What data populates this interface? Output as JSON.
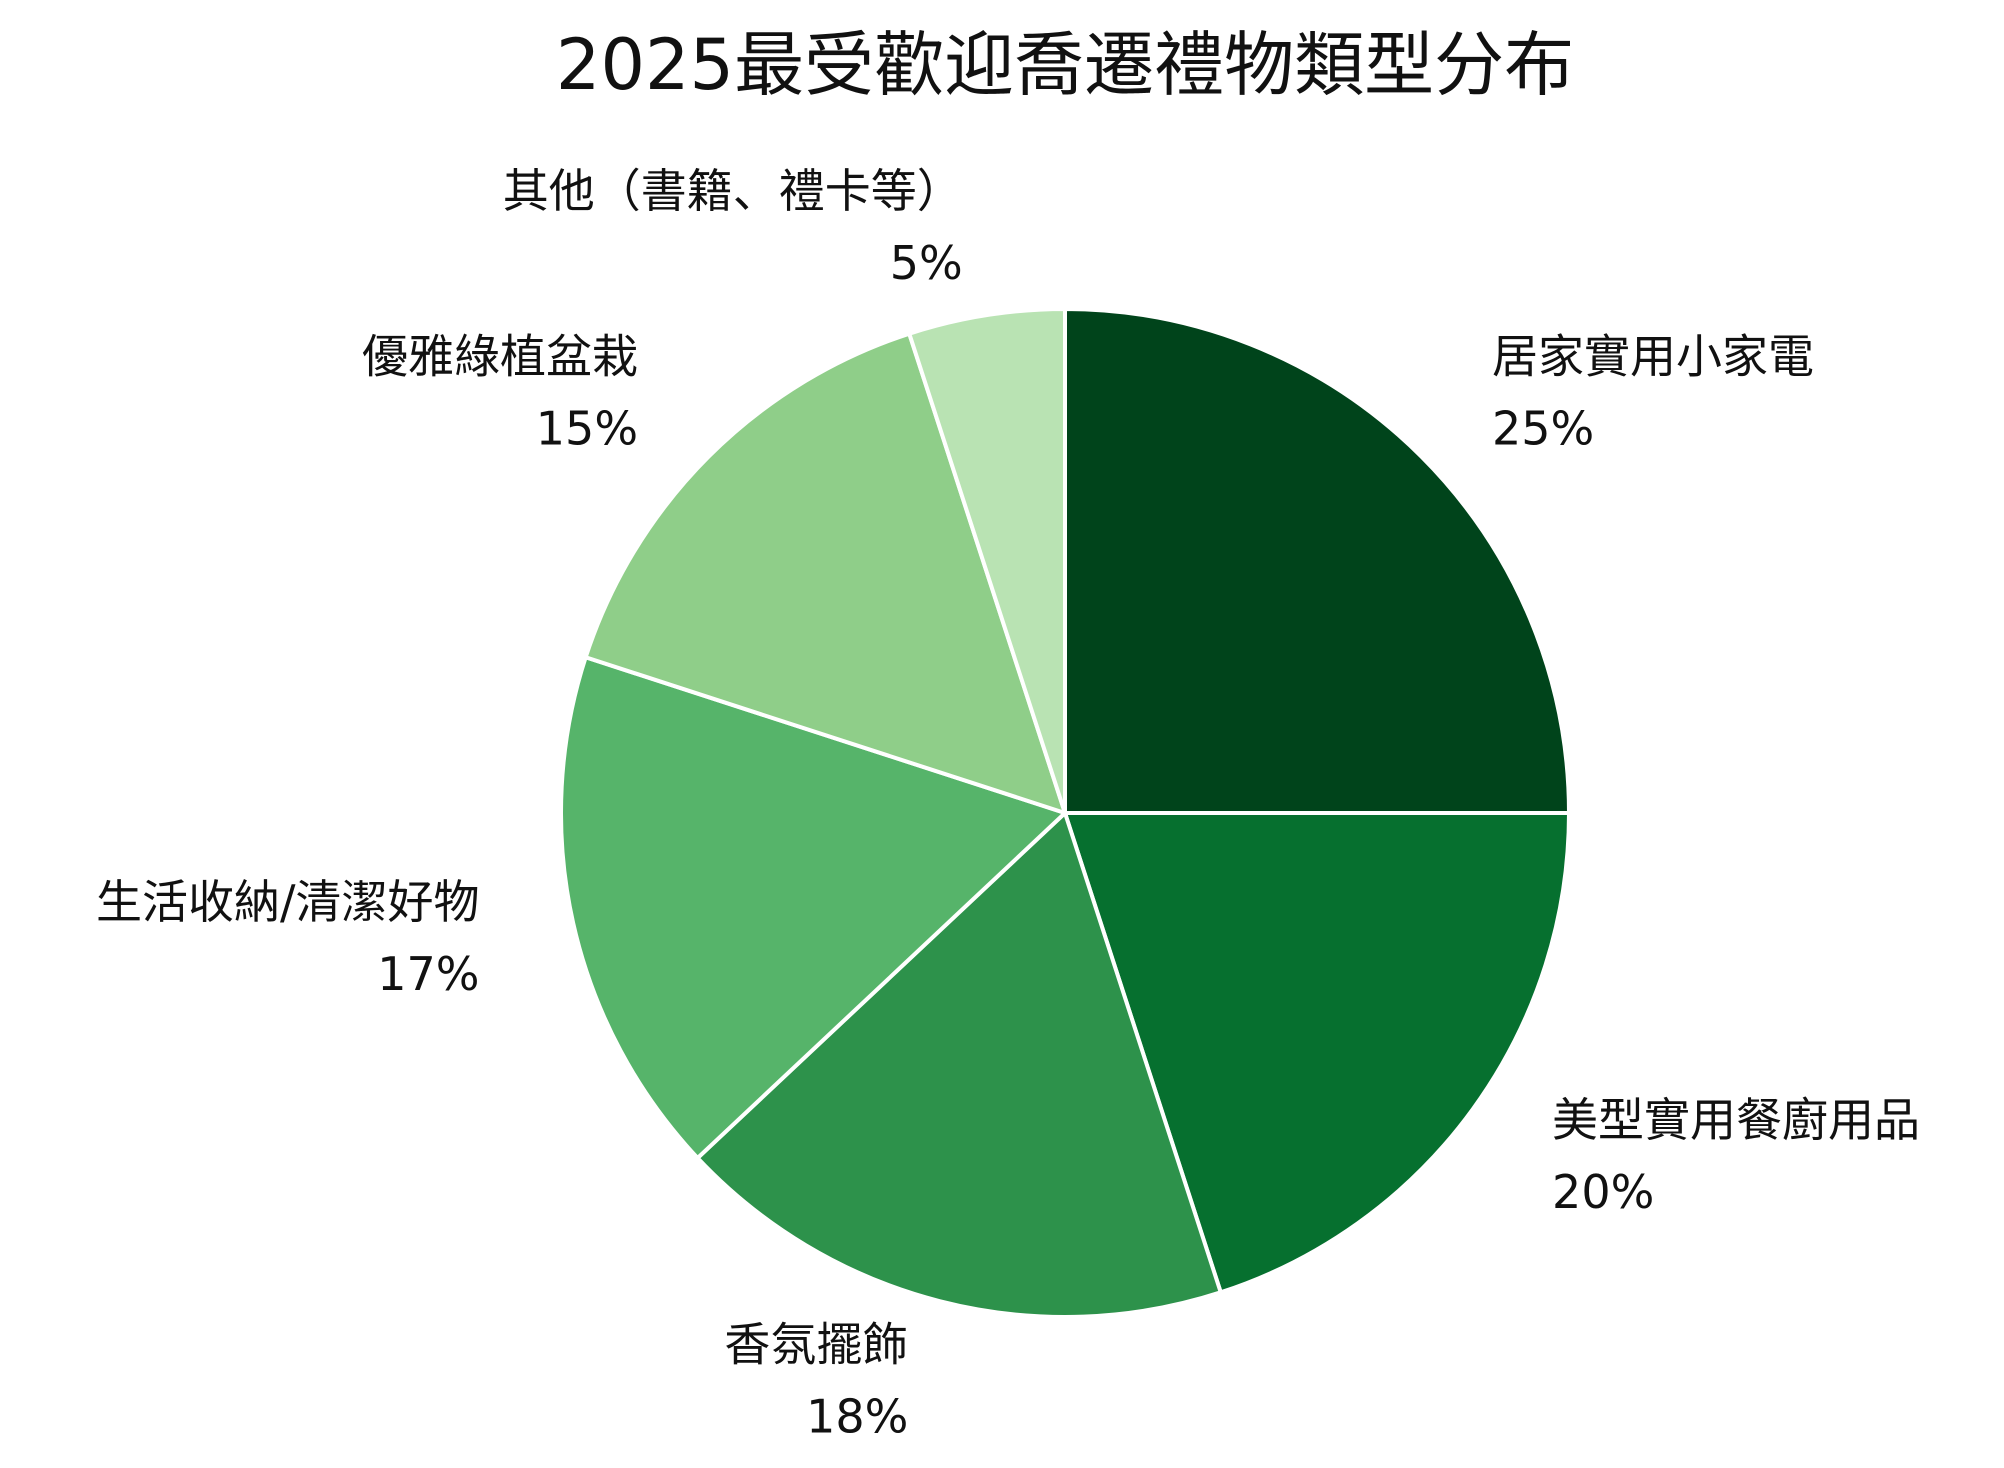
{
  "chart_data": {
    "type": "pie",
    "title": "2025最受歡迎喬遷禮物類型分布",
    "categories": [
      "居家實用小家電",
      "美型實用餐廚用品",
      "香氛擺飾",
      "生活收納/清潔好物",
      "優雅綠植盆栽",
      "其他（書籍、禮卡等）"
    ],
    "values": [
      25,
      20,
      18,
      17,
      15,
      5
    ],
    "value_labels": [
      "25%",
      "20%",
      "18%",
      "17%",
      "15%",
      "5%"
    ],
    "colors": [
      "#00441b",
      "#06702f",
      "#2d924b",
      "#56b46a",
      "#8fce89",
      "#b9e3b3"
    ]
  }
}
